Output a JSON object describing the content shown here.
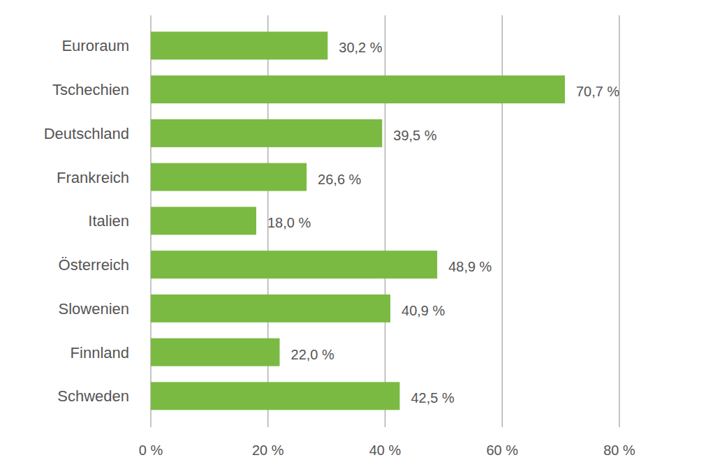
{
  "chart_data": {
    "type": "bar",
    "orientation": "horizontal",
    "categories": [
      "Euroraum",
      "Tschechien",
      "Deutschland",
      "Frankreich",
      "Italien",
      "Österreich",
      "Slowenien",
      "Finnland",
      "Schweden"
    ],
    "values": [
      30.2,
      70.7,
      39.5,
      26.6,
      18.0,
      48.9,
      40.9,
      22.0,
      42.5
    ],
    "value_labels": [
      "30,2 %",
      "70,7 %",
      "39,5 %",
      "26,6 %",
      "18,0 %",
      "48,9 %",
      "40,9 %",
      "22,0 %",
      "42,5 %"
    ],
    "color": "#7aba42",
    "xlim": [
      0,
      80
    ],
    "xticks": [
      {
        "value": 0,
        "label": "0 %"
      },
      {
        "value": 20,
        "label": "20 %"
      },
      {
        "value": 40,
        "label": "40 %"
      },
      {
        "value": 60,
        "label": "60 %"
      },
      {
        "value": 80,
        "label": "80 %"
      }
    ],
    "grid": true,
    "data_labels": true
  }
}
